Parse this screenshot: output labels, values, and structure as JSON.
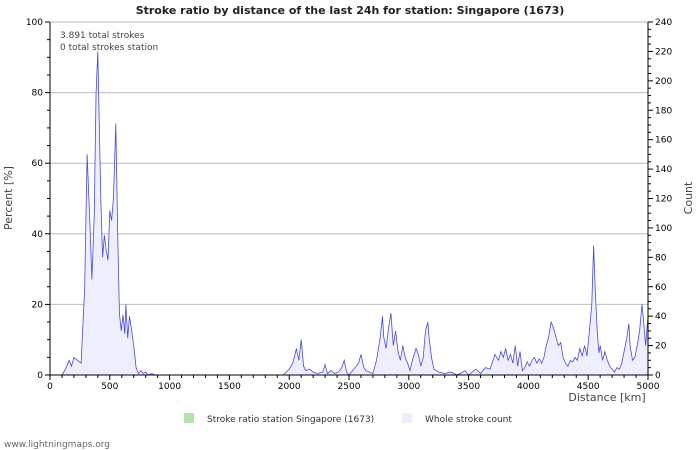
{
  "chart_data": {
    "type": "area",
    "title": "Stroke ratio by distance of the last 24h for station: Singapore (1673)",
    "xlabel": "Distance   [km]",
    "ylabel_left": "Percent   [%]",
    "ylabel_right": "Count",
    "xlim": [
      0,
      5000
    ],
    "ylim_left": [
      0,
      100
    ],
    "ylim_right": [
      0,
      240
    ],
    "x_ticks": [
      0,
      500,
      1000,
      1500,
      2000,
      2500,
      3000,
      3500,
      4000,
      4500,
      5000
    ],
    "y_ticks_left": [
      0,
      20,
      40,
      60,
      80,
      100
    ],
    "y_ticks_right": [
      0,
      20,
      40,
      60,
      80,
      100,
      120,
      140,
      160,
      180,
      200,
      220,
      240
    ],
    "grid": true,
    "annotations": [
      "3.891 total strokes",
      "0 total strokes station"
    ],
    "legend": [
      {
        "label": "Stroke ratio station Singapore (1673)",
        "color": "#b7e0b0"
      },
      {
        "label": "Whole stroke count",
        "color": "#eeeeff"
      }
    ],
    "series": [
      {
        "name": "Stroke ratio station Singapore (1673)",
        "axis": "left",
        "values": []
      },
      {
        "name": "Whole stroke count",
        "axis": "right",
        "color": "#4a4ad8",
        "points": [
          [
            100,
            0
          ],
          [
            130,
            4
          ],
          [
            160,
            10
          ],
          [
            180,
            6
          ],
          [
            200,
            12
          ],
          [
            230,
            10
          ],
          [
            260,
            8
          ],
          [
            290,
            60
          ],
          [
            310,
            150
          ],
          [
            330,
            110
          ],
          [
            350,
            65
          ],
          [
            370,
            110
          ],
          [
            385,
            190
          ],
          [
            400,
            220
          ],
          [
            410,
            180
          ],
          [
            425,
            120
          ],
          [
            440,
            80
          ],
          [
            455,
            95
          ],
          [
            470,
            85
          ],
          [
            485,
            78
          ],
          [
            500,
            112
          ],
          [
            515,
            105
          ],
          [
            530,
            120
          ],
          [
            550,
            171
          ],
          [
            565,
            100
          ],
          [
            580,
            42
          ],
          [
            595,
            30
          ],
          [
            610,
            41
          ],
          [
            625,
            28
          ],
          [
            635,
            48
          ],
          [
            650,
            25
          ],
          [
            665,
            40
          ],
          [
            680,
            32
          ],
          [
            700,
            20
          ],
          [
            720,
            5
          ],
          [
            740,
            1
          ],
          [
            760,
            3
          ],
          [
            780,
            1
          ],
          [
            800,
            2
          ],
          [
            820,
            0
          ],
          [
            850,
            1
          ],
          [
            880,
            0
          ],
          [
            900,
            0
          ],
          [
            1000,
            0
          ],
          [
            1200,
            0
          ],
          [
            1400,
            0
          ],
          [
            1600,
            0
          ],
          [
            1800,
            0
          ],
          [
            1950,
            0
          ],
          [
            2000,
            4
          ],
          [
            2030,
            8
          ],
          [
            2060,
            18
          ],
          [
            2080,
            10
          ],
          [
            2100,
            24
          ],
          [
            2120,
            6
          ],
          [
            2140,
            3
          ],
          [
            2170,
            4
          ],
          [
            2200,
            2
          ],
          [
            2240,
            1
          ],
          [
            2280,
            2
          ],
          [
            2300,
            7
          ],
          [
            2320,
            1
          ],
          [
            2350,
            3
          ],
          [
            2380,
            1
          ],
          [
            2410,
            2
          ],
          [
            2440,
            5
          ],
          [
            2460,
            10
          ],
          [
            2480,
            2
          ],
          [
            2500,
            0
          ],
          [
            2540,
            4
          ],
          [
            2580,
            8
          ],
          [
            2600,
            14
          ],
          [
            2620,
            6
          ],
          [
            2640,
            3
          ],
          [
            2670,
            2
          ],
          [
            2700,
            1
          ],
          [
            2730,
            10
          ],
          [
            2760,
            25
          ],
          [
            2780,
            40
          ],
          [
            2790,
            26
          ],
          [
            2810,
            18
          ],
          [
            2830,
            32
          ],
          [
            2850,
            42
          ],
          [
            2870,
            20
          ],
          [
            2890,
            30
          ],
          [
            2910,
            16
          ],
          [
            2930,
            10
          ],
          [
            2950,
            20
          ],
          [
            2970,
            12
          ],
          [
            2990,
            8
          ],
          [
            3010,
            3
          ],
          [
            3030,
            10
          ],
          [
            3060,
            18
          ],
          [
            3080,
            14
          ],
          [
            3100,
            6
          ],
          [
            3120,
            12
          ],
          [
            3140,
            30
          ],
          [
            3160,
            36
          ],
          [
            3170,
            25
          ],
          [
            3190,
            12
          ],
          [
            3210,
            4
          ],
          [
            3250,
            2
          ],
          [
            3300,
            1
          ],
          [
            3350,
            2
          ],
          [
            3380,
            1
          ],
          [
            3400,
            0
          ],
          [
            3430,
            1
          ],
          [
            3470,
            3
          ],
          [
            3500,
            0
          ],
          [
            3530,
            2
          ],
          [
            3560,
            4
          ],
          [
            3600,
            1
          ],
          [
            3640,
            5
          ],
          [
            3680,
            4
          ],
          [
            3720,
            14
          ],
          [
            3750,
            10
          ],
          [
            3770,
            16
          ],
          [
            3790,
            12
          ],
          [
            3810,
            18
          ],
          [
            3830,
            10
          ],
          [
            3850,
            14
          ],
          [
            3870,
            8
          ],
          [
            3890,
            20
          ],
          [
            3910,
            6
          ],
          [
            3930,
            16
          ],
          [
            3950,
            3
          ],
          [
            3970,
            5
          ],
          [
            3990,
            9
          ],
          [
            4010,
            6
          ],
          [
            4030,
            10
          ],
          [
            4050,
            12
          ],
          [
            4070,
            8
          ],
          [
            4090,
            11
          ],
          [
            4110,
            8
          ],
          [
            4130,
            12
          ],
          [
            4150,
            20
          ],
          [
            4170,
            26
          ],
          [
            4190,
            36
          ],
          [
            4210,
            32
          ],
          [
            4230,
            26
          ],
          [
            4250,
            20
          ],
          [
            4270,
            22
          ],
          [
            4290,
            12
          ],
          [
            4310,
            8
          ],
          [
            4330,
            6
          ],
          [
            4350,
            10
          ],
          [
            4370,
            9
          ],
          [
            4390,
            12
          ],
          [
            4410,
            10
          ],
          [
            4430,
            18
          ],
          [
            4450,
            13
          ],
          [
            4470,
            20
          ],
          [
            4490,
            13
          ],
          [
            4510,
            30
          ],
          [
            4530,
            48
          ],
          [
            4545,
            88
          ],
          [
            4560,
            55
          ],
          [
            4575,
            30
          ],
          [
            4590,
            15
          ],
          [
            4600,
            20
          ],
          [
            4620,
            10
          ],
          [
            4640,
            16
          ],
          [
            4660,
            10
          ],
          [
            4680,
            6
          ],
          [
            4700,
            4
          ],
          [
            4720,
            2
          ],
          [
            4740,
            5
          ],
          [
            4760,
            4
          ],
          [
            4780,
            8
          ],
          [
            4800,
            16
          ],
          [
            4820,
            24
          ],
          [
            4840,
            35
          ],
          [
            4850,
            20
          ],
          [
            4870,
            10
          ],
          [
            4890,
            12
          ],
          [
            4910,
            20
          ],
          [
            4930,
            30
          ],
          [
            4950,
            48
          ],
          [
            4960,
            40
          ],
          [
            4970,
            30
          ],
          [
            4980,
            20
          ],
          [
            4990,
            30
          ],
          [
            5000,
            40
          ]
        ]
      }
    ]
  },
  "footer": "www.lightningmaps.org"
}
